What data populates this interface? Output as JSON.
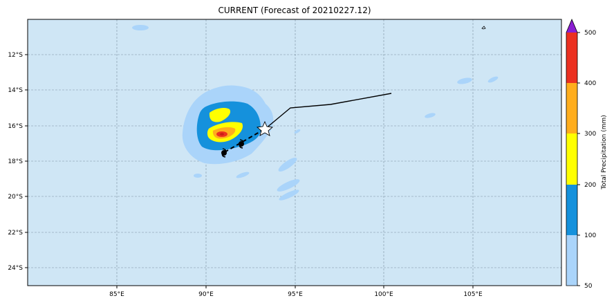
{
  "title": "CURRENT (Forecast of 20210227.12)",
  "map": {
    "background_color": "#cfe6f5",
    "lat_ticks": [
      "12°S",
      "14°S",
      "16°S",
      "18°S",
      "20°S",
      "22°S",
      "24°S"
    ],
    "lon_ticks": [
      "85°E",
      "90°E",
      "95°E",
      "100°E",
      "105°E"
    ],
    "current_position_marker": "white-star-icon",
    "forecast_positions_marker": "black-cyclone-icon"
  },
  "colorbar": {
    "label": "Total Precipitation (mm)",
    "tick_labels": [
      "50",
      "100",
      "200",
      "300",
      "400",
      "500"
    ],
    "colors": [
      "#aad4fa",
      "#1591dc",
      "#ffff00",
      "#ffad1d",
      "#eb3020",
      "#8a1ed2"
    ]
  }
}
